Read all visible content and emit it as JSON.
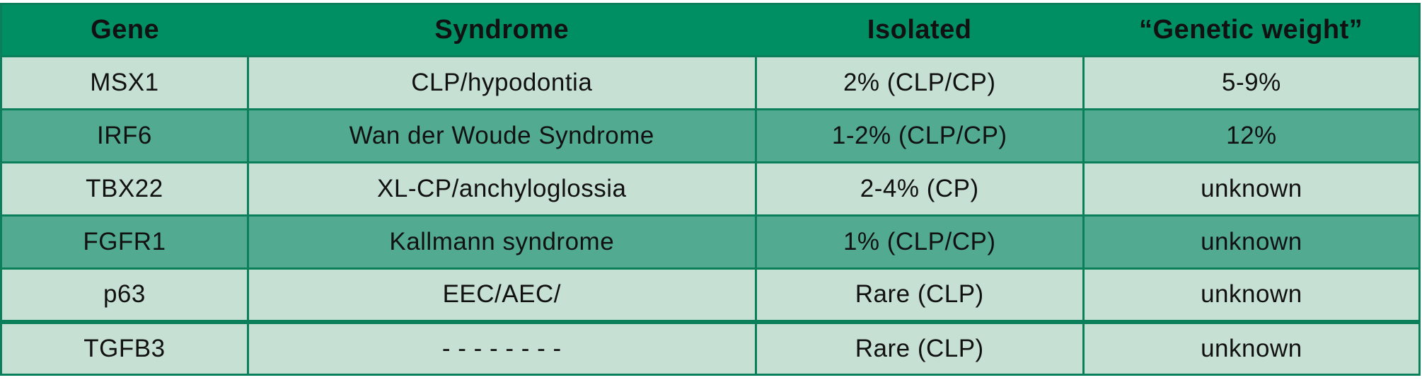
{
  "chart_data": {
    "type": "table",
    "title": "",
    "columns": [
      "Gene",
      "Syndrome",
      "Isolated",
      "“Genetic weight”"
    ],
    "rows": [
      [
        "MSX1",
        "CLP/hypodontia",
        "2% (CLP/CP)",
        "5-9%"
      ],
      [
        "IRF6",
        "Wan der Woude Syndrome",
        "1-2% (CLP/CP)",
        "12%"
      ],
      [
        "TBX22",
        "XL-CP/anchyloglossia",
        "2-4% (CP)",
        "unknown"
      ],
      [
        "FGFR1",
        "Kallmann syndrome",
        "1% (CLP/CP)",
        "unknown"
      ],
      [
        "p63",
        "EEC/AEC/",
        "Rare (CLP)",
        "unknown"
      ],
      [
        "TGFB3",
        "- - - - - - - -",
        "Rare (CLP)",
        "unknown"
      ]
    ]
  },
  "colors": {
    "header-green": "#008e63",
    "row-medium": "#52ab90",
    "row-light": "#c6e0d4",
    "border-green": "#0b7f5a",
    "text-color": "#111111"
  }
}
